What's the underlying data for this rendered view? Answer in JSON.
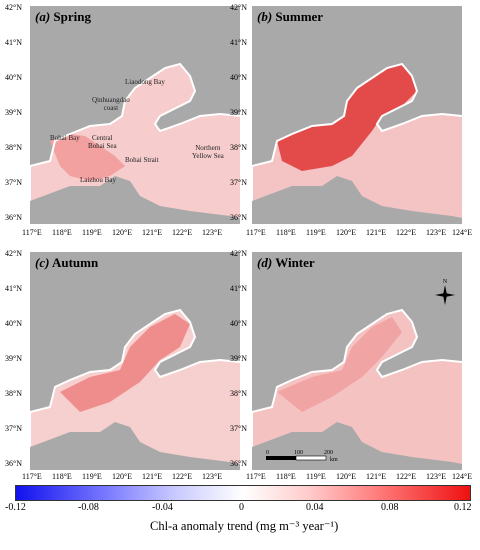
{
  "panels": [
    {
      "letter": "(a)",
      "season": "Spring"
    },
    {
      "letter": "(b)",
      "season": "Summer"
    },
    {
      "letter": "(c)",
      "season": "Autumn"
    },
    {
      "letter": "(d)",
      "season": "Winter"
    }
  ],
  "y_ticks": [
    "42°N",
    "41°N",
    "40°N",
    "39°N",
    "38°N",
    "37°N",
    "36°N"
  ],
  "x_ticks": [
    "117°E",
    "118°E",
    "119°E",
    "120°E",
    "121°E",
    "122°E",
    "123°E",
    "124°E"
  ],
  "place_labels": {
    "liaodong_bay": "Liaodong Bay",
    "qinhuangdao": "Qinhuangdao\ncoast",
    "bohai_bay": "Bohai Bay",
    "central_bohai": "Central\nBohai Sea",
    "bohai_strait": "Bohai Strait",
    "northern_yellow_sea": "Northern\nYellow Sea",
    "laizhou_bay": "Laizhou Bay"
  },
  "compass": {
    "north_label": "N",
    "icon": "north-arrow-icon"
  },
  "scale_bar": {
    "labels": [
      "0",
      "100",
      "200"
    ],
    "unit": "km"
  },
  "colorbar": {
    "ticks": [
      "-0.12",
      "-0.08",
      "-0.04",
      "0",
      "0.04",
      "0.08",
      "0.12"
    ],
    "title": "Chl-a anomaly trend (mg m⁻³ year⁻¹)",
    "colors": {
      "low": "#1111ee",
      "mid": "#ffffff",
      "high": "#ee1111"
    }
  },
  "land_color": "#a9a9a9"
}
